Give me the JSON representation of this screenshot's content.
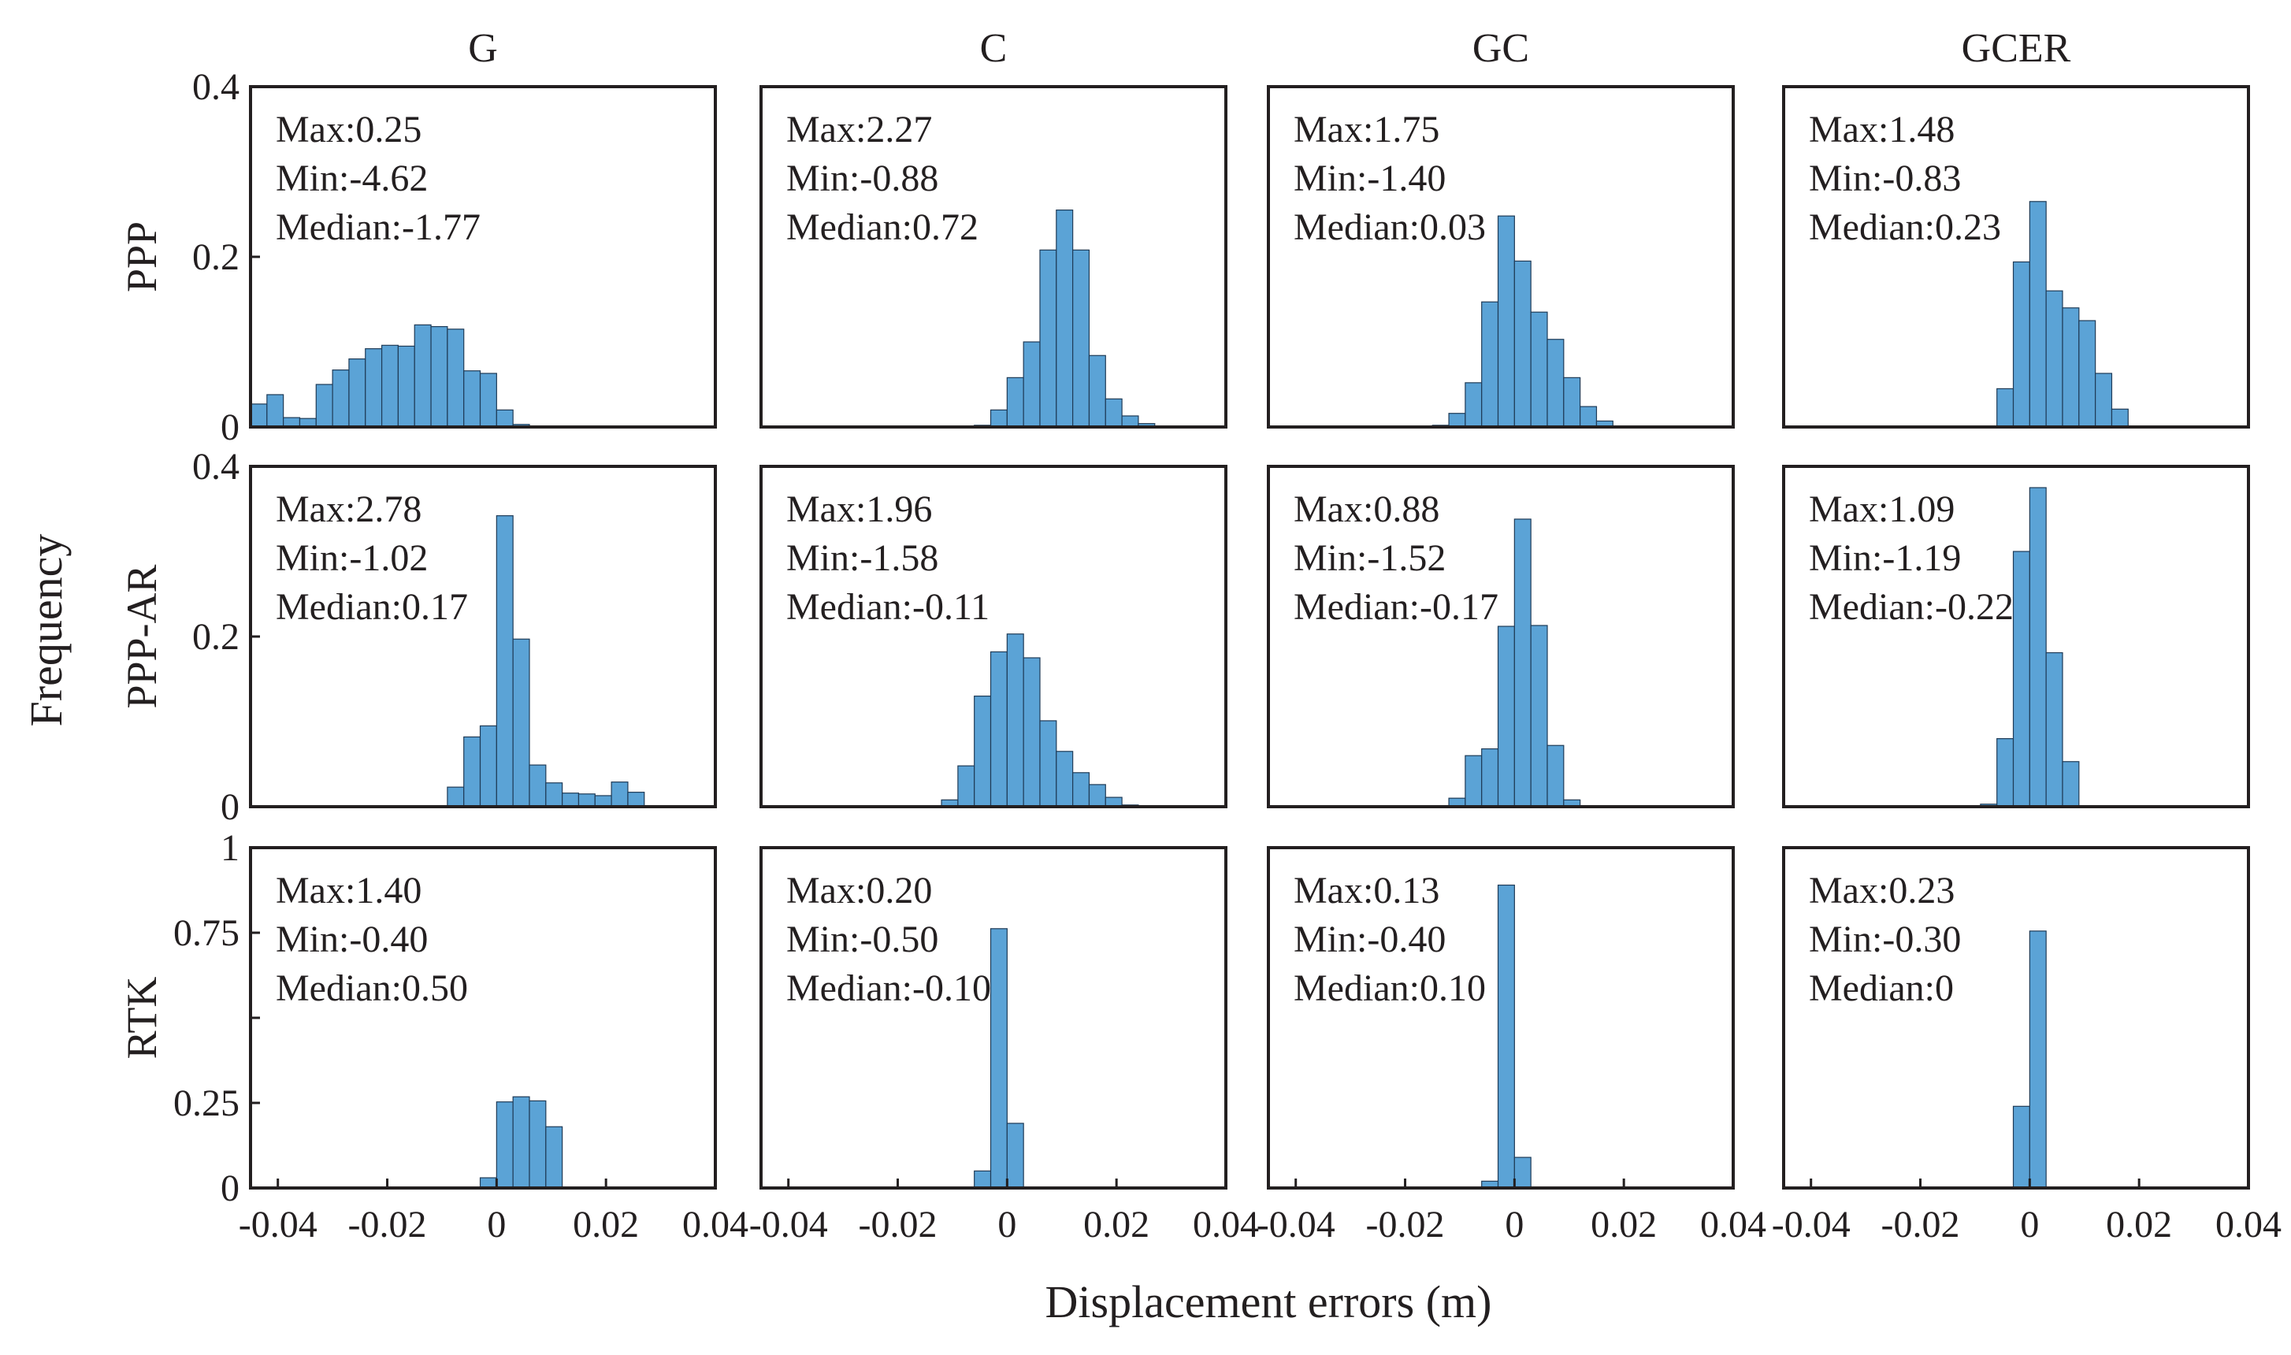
{
  "figure": {
    "column_titles": [
      "G",
      "C",
      "GC",
      "GCER"
    ],
    "row_titles": [
      "PPP",
      "PPP-AR",
      "RTK"
    ],
    "y_axis_label": "Frequency",
    "x_axis_label": "Displacement errors (m)"
  },
  "chart_data": [
    {
      "type": "bar",
      "row": 0,
      "col": 0,
      "title": "G",
      "row_label": "PPP",
      "xlabel": "Displacement errors (m)",
      "ylabel": "Frequency",
      "xlim": [
        -0.045,
        0.04
      ],
      "ylim": [
        0,
        0.4
      ],
      "bin_width": 0.003,
      "bin_start": -0.045,
      "values": [
        0.027,
        0.038,
        0.011,
        0.01,
        0.05,
        0.067,
        0.08,
        0.092,
        0.096,
        0.095,
        0.12,
        0.118,
        0.115,
        0.066,
        0.063,
        0.02,
        0.003,
        0.001,
        0.001,
        0.001
      ],
      "stats": [
        "Max:0.25",
        "Min:-4.62",
        "Median:-1.77"
      ],
      "yticks": [
        0,
        0.2,
        0.4
      ],
      "ytick_labels": [
        "0",
        "0.2",
        "0.4"
      ],
      "xticks": []
    },
    {
      "type": "bar",
      "row": 0,
      "col": 1,
      "title": "C",
      "row_label": "PPP",
      "xlim": [
        -0.045,
        0.04
      ],
      "ylim": [
        0,
        0.4
      ],
      "bin_width": 0.003,
      "bin_start": -0.006,
      "values": [
        0.002,
        0.02,
        0.058,
        0.1,
        0.208,
        0.255,
        0.208,
        0.084,
        0.033,
        0.013,
        0.004,
        0.001
      ],
      "stats": [
        "Max:2.27",
        "Min:-0.88",
        "Median:0.72"
      ],
      "yticks": [],
      "xticks": []
    },
    {
      "type": "bar",
      "row": 0,
      "col": 2,
      "title": "GC",
      "row_label": "PPP",
      "xlim": [
        -0.045,
        0.04
      ],
      "ylim": [
        0,
        0.4
      ],
      "bin_width": 0.003,
      "bin_start": -0.015,
      "values": [
        0.002,
        0.016,
        0.052,
        0.147,
        0.248,
        0.195,
        0.135,
        0.103,
        0.058,
        0.024,
        0.007,
        0.001
      ],
      "stats": [
        "Max:1.75",
        "Min:-1.40",
        "Median:0.03"
      ],
      "yticks": [],
      "xticks": []
    },
    {
      "type": "bar",
      "row": 0,
      "col": 3,
      "title": "GCER",
      "row_label": "PPP",
      "xlim": [
        -0.045,
        0.04
      ],
      "ylim": [
        0,
        0.4
      ],
      "bin_width": 0.003,
      "bin_start": -0.009,
      "values": [
        0.001,
        0.045,
        0.194,
        0.265,
        0.16,
        0.14,
        0.125,
        0.063,
        0.021
      ],
      "stats": [
        "Max:1.48",
        "Min:-0.83",
        "Median:0.23"
      ],
      "yticks": [],
      "xticks": []
    },
    {
      "type": "bar",
      "row": 1,
      "col": 0,
      "title": "G",
      "row_label": "PPP-AR",
      "xlim": [
        -0.045,
        0.04
      ],
      "ylim": [
        0,
        0.4
      ],
      "bin_width": 0.003,
      "bin_start": -0.009,
      "values": [
        0.023,
        0.082,
        0.095,
        0.342,
        0.197,
        0.049,
        0.028,
        0.016,
        0.015,
        0.013,
        0.029,
        0.017,
        0.001
      ],
      "stats": [
        "Max:2.78",
        "Min:-1.02",
        "Median:0.17"
      ],
      "yticks": [
        0,
        0.2,
        0.4
      ],
      "ytick_labels": [
        "0",
        "0.2",
        "0.4"
      ],
      "xticks": []
    },
    {
      "type": "bar",
      "row": 1,
      "col": 1,
      "title": "C",
      "row_label": "PPP-AR",
      "xlim": [
        -0.045,
        0.04
      ],
      "ylim": [
        0,
        0.4
      ],
      "bin_width": 0.003,
      "bin_start": -0.015,
      "values": [
        0.001,
        0.008,
        0.048,
        0.13,
        0.182,
        0.203,
        0.175,
        0.101,
        0.065,
        0.04,
        0.026,
        0.011,
        0.002
      ],
      "stats": [
        "Max:1.96",
        "Min:-1.58",
        "Median:-0.11"
      ],
      "yticks": [],
      "xticks": []
    },
    {
      "type": "bar",
      "row": 1,
      "col": 2,
      "title": "GC",
      "row_label": "PPP-AR",
      "xlim": [
        -0.045,
        0.04
      ],
      "ylim": [
        0,
        0.4
      ],
      "bin_width": 0.003,
      "bin_start": -0.015,
      "values": [
        0.001,
        0.01,
        0.06,
        0.068,
        0.212,
        0.338,
        0.213,
        0.072,
        0.008,
        0.001
      ],
      "stats": [
        "Max:0.88",
        "Min:-1.52",
        "Median:-0.17"
      ],
      "yticks": [],
      "xticks": []
    },
    {
      "type": "bar",
      "row": 1,
      "col": 3,
      "title": "GCER",
      "row_label": "PPP-AR",
      "xlim": [
        -0.045,
        0.04
      ],
      "ylim": [
        0,
        0.4
      ],
      "bin_width": 0.003,
      "bin_start": -0.009,
      "values": [
        0.003,
        0.08,
        0.3,
        0.375,
        0.181,
        0.053
      ],
      "stats": [
        "Max:1.09",
        "Min:-1.19",
        "Median:-0.22"
      ],
      "yticks": [],
      "xticks": []
    },
    {
      "type": "bar",
      "row": 2,
      "col": 0,
      "title": "G",
      "row_label": "RTK",
      "xlim": [
        -0.045,
        0.04
      ],
      "ylim": [
        0,
        1
      ],
      "bin_width": 0.003,
      "bin_start": -0.003,
      "values": [
        0.03,
        0.253,
        0.268,
        0.256,
        0.18,
        0.002
      ],
      "stats": [
        "Max:1.40",
        "Min:-0.40",
        "Median:0.50"
      ],
      "yticks": [
        0,
        0.25,
        0.5,
        0.75,
        1
      ],
      "ytick_labels": [
        "0",
        "0.25",
        "",
        "0.75",
        "1"
      ],
      "xticks": [
        -0.04,
        -0.02,
        0,
        0.02,
        0.04
      ],
      "xtick_labels": [
        "-0.04",
        "-0.02",
        "0",
        "0.02",
        "0.04"
      ]
    },
    {
      "type": "bar",
      "row": 2,
      "col": 1,
      "title": "C",
      "row_label": "RTK",
      "xlim": [
        -0.045,
        0.04
      ],
      "ylim": [
        0,
        1
      ],
      "bin_width": 0.003,
      "bin_start": -0.006,
      "values": [
        0.05,
        0.762,
        0.19
      ],
      "stats": [
        "Max:0.20",
        "Min:-0.50",
        "Median:-0.10"
      ],
      "yticks": [],
      "xticks": [
        -0.04,
        -0.02,
        0,
        0.02,
        0.04
      ],
      "xtick_labels": [
        "-0.04",
        "-0.02",
        "0",
        "0.02",
        "0.04"
      ]
    },
    {
      "type": "bar",
      "row": 2,
      "col": 2,
      "title": "GC",
      "row_label": "RTK",
      "xlim": [
        -0.045,
        0.04
      ],
      "ylim": [
        0,
        1
      ],
      "bin_width": 0.003,
      "bin_start": -0.006,
      "values": [
        0.02,
        0.89,
        0.09
      ],
      "stats": [
        "Max:0.13",
        "Min:-0.40",
        "Median:0.10"
      ],
      "yticks": [],
      "xticks": [
        -0.04,
        -0.02,
        0,
        0.02,
        0.04
      ],
      "xtick_labels": [
        "-0.04",
        "-0.02",
        "0",
        "0.02",
        "0.04"
      ]
    },
    {
      "type": "bar",
      "row": 2,
      "col": 3,
      "title": "GCER",
      "row_label": "RTK",
      "xlim": [
        -0.045,
        0.04
      ],
      "ylim": [
        0,
        1
      ],
      "bin_width": 0.003,
      "bin_start": -0.003,
      "values": [
        0.24,
        0.755
      ],
      "stats": [
        "Max:0.23",
        "Min:-0.30",
        "Median:0"
      ],
      "yticks": [],
      "xticks": [
        -0.04,
        -0.02,
        0,
        0.02,
        0.04
      ],
      "xtick_labels": [
        "-0.04",
        "-0.02",
        "0",
        "0.02",
        "0.04"
      ]
    }
  ]
}
